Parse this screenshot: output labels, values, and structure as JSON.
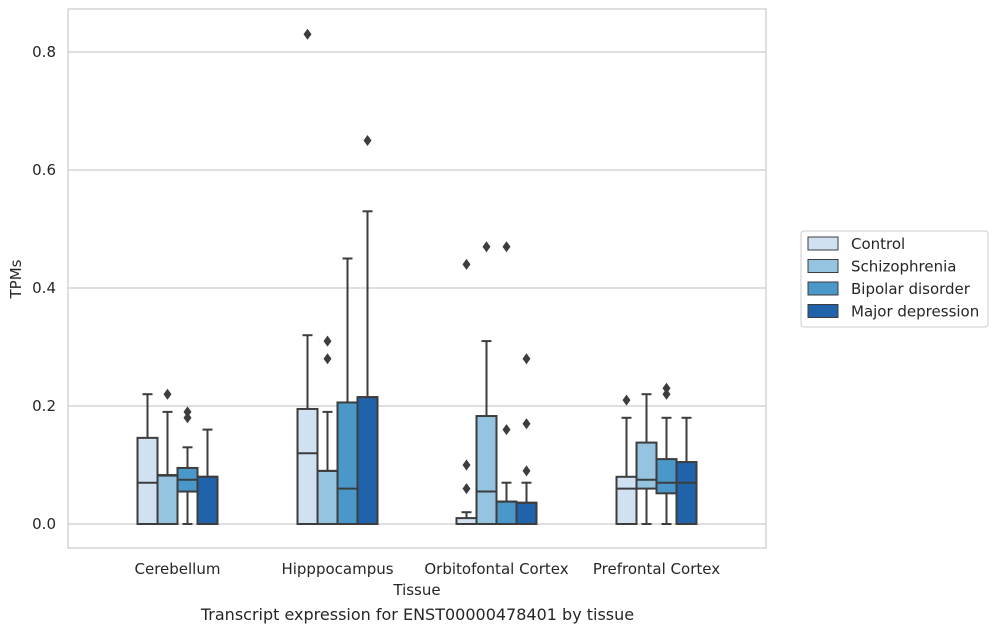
{
  "chart_data": {
    "type": "box",
    "xlabel": "Tissue",
    "ylabel": "TPMs",
    "caption": "Transcript expression for ENST00000478401 by tissue",
    "categories": [
      "Cerebellum",
      "Hipppocampus",
      "Orbitofontal Cortex",
      "Prefrontal Cortex"
    ],
    "ylim": [
      -0.04,
      0.87
    ],
    "yticks": [
      0.0,
      0.2,
      0.4,
      0.6,
      0.8
    ],
    "ytick_labels": [
      "0.0",
      "0.2",
      "0.4",
      "0.6",
      "0.8"
    ],
    "grid": true,
    "legend_position": "right",
    "series": [
      {
        "name": "Control",
        "color": "#d0e1f2",
        "boxes": [
          {
            "whislo": 0.0,
            "q1": 0.0,
            "med": 0.07,
            "q3": 0.146,
            "whishi": 0.22,
            "fliers": []
          },
          {
            "whislo": 0.0,
            "q1": 0.0,
            "med": 0.12,
            "q3": 0.195,
            "whishi": 0.32,
            "fliers": [
              0.83
            ]
          },
          {
            "whislo": 0.0,
            "q1": 0.0,
            "med": 0.0,
            "q3": 0.01,
            "whishi": 0.02,
            "fliers": [
              0.44,
              0.1,
              0.06
            ]
          },
          {
            "whislo": 0.0,
            "q1": 0.0,
            "med": 0.06,
            "q3": 0.08,
            "whishi": 0.18,
            "fliers": [
              0.21
            ]
          }
        ]
      },
      {
        "name": "Schizophrenia",
        "color": "#94c4df",
        "boxes": [
          {
            "whislo": 0.0,
            "q1": 0.0,
            "med": 0.082,
            "q3": 0.083,
            "whishi": 0.19,
            "fliers": [
              0.22
            ]
          },
          {
            "whislo": 0.0,
            "q1": 0.0,
            "med": 0.09,
            "q3": 0.09,
            "whishi": 0.19,
            "fliers": [
              0.31,
              0.28
            ]
          },
          {
            "whislo": 0.0,
            "q1": 0.0,
            "med": 0.055,
            "q3": 0.183,
            "whishi": 0.31,
            "fliers": [
              0.47
            ]
          },
          {
            "whislo": 0.0,
            "q1": 0.06,
            "med": 0.075,
            "q3": 0.138,
            "whishi": 0.22,
            "fliers": []
          }
        ]
      },
      {
        "name": "Bipolar disorder",
        "color": "#4a98c9",
        "boxes": [
          {
            "whislo": 0.0,
            "q1": 0.055,
            "med": 0.075,
            "q3": 0.095,
            "whishi": 0.13,
            "fliers": [
              0.19,
              0.18
            ]
          },
          {
            "whislo": 0.0,
            "q1": 0.0,
            "med": 0.06,
            "q3": 0.206,
            "whishi": 0.45,
            "fliers": []
          },
          {
            "whislo": 0.0,
            "q1": 0.0,
            "med": 0.038,
            "q3": 0.038,
            "whishi": 0.07,
            "fliers": [
              0.47,
              0.16
            ]
          },
          {
            "whislo": 0.0,
            "q1": 0.052,
            "med": 0.07,
            "q3": 0.11,
            "whishi": 0.18,
            "fliers": [
              0.23,
              0.22
            ]
          }
        ]
      },
      {
        "name": "Major depression",
        "color": "#2163aa",
        "boxes": [
          {
            "whislo": 0.0,
            "q1": 0.0,
            "med": 0.08,
            "q3": 0.08,
            "whishi": 0.16,
            "fliers": []
          },
          {
            "whislo": 0.0,
            "q1": 0.0,
            "med": 0.215,
            "q3": 0.215,
            "whishi": 0.53,
            "fliers": [
              0.65
            ]
          },
          {
            "whislo": 0.0,
            "q1": 0.0,
            "med": 0.036,
            "q3": 0.036,
            "whishi": 0.07,
            "fliers": [
              0.28,
              0.17,
              0.09
            ]
          },
          {
            "whislo": 0.0,
            "q1": 0.0,
            "med": 0.07,
            "q3": 0.105,
            "whishi": 0.18,
            "fliers": []
          }
        ]
      }
    ]
  }
}
